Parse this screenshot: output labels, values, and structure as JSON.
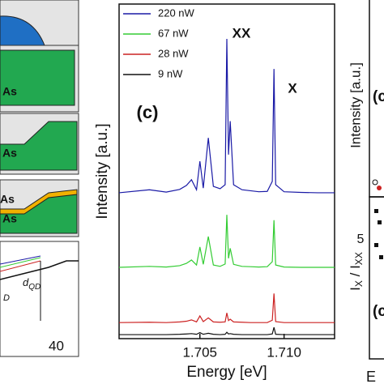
{
  "chart_data": {
    "type": "line",
    "xlabel": "Energy [eV]",
    "ylabel": "Intensity [a.u.]",
    "x": [
      1.7002,
      1.702,
      1.703,
      1.7038,
      1.7042,
      1.7045,
      1.7048,
      1.705,
      1.7052,
      1.7055,
      1.7058,
      1.7062,
      1.7065,
      1.7066,
      1.7067,
      1.7068,
      1.707,
      1.7075,
      1.708,
      1.7085,
      1.709,
      1.7093,
      1.7094,
      1.7095,
      1.71,
      1.711,
      1.712,
      1.713
    ],
    "series": [
      {
        "name": "220 nW",
        "color": "#1a1aa6",
        "values": [
          43.6,
          44.5,
          43.8,
          44.6,
          45.8,
          47.5,
          44.5,
          53,
          45,
          60,
          45.5,
          44.8,
          46,
          89.6,
          55,
          65,
          46,
          44.5,
          44.2,
          43.9,
          44,
          47,
          80.6,
          46,
          43.9,
          43.7,
          43.6,
          43.6
        ]
      },
      {
        "name": "67 nW",
        "color": "#33cc33",
        "values": [
          21.3,
          21.6,
          21.4,
          21.8,
          22.5,
          23.5,
          22,
          27.4,
          22.2,
          30.5,
          22,
          21.6,
          22.3,
          37,
          24,
          27,
          22.2,
          21.6,
          21.5,
          21.4,
          21.5,
          23,
          35.4,
          22,
          21.4,
          21.3,
          21.3,
          21.3
        ]
      },
      {
        "name": "28 nW",
        "color": "#cc2222",
        "values": [
          4.8,
          4.9,
          4.8,
          5,
          5.2,
          5.6,
          5,
          6.8,
          5.1,
          6.2,
          5,
          4.9,
          5,
          7.7,
          5.4,
          5.8,
          5,
          4.9,
          4.8,
          4.8,
          4.8,
          5.5,
          13.5,
          5.1,
          4.8,
          4.8,
          4.8,
          4.8
        ]
      },
      {
        "name": "9 nW",
        "color": "#111111",
        "values": [
          1.2,
          1.2,
          1.2,
          1.3,
          1.4,
          1.5,
          1.3,
          1.8,
          1.3,
          1.6,
          1.3,
          1.2,
          1.3,
          1.9,
          1.4,
          1.5,
          1.3,
          1.2,
          1.2,
          1.2,
          1.2,
          1.4,
          3.4,
          1.3,
          1.2,
          1.2,
          1.2,
          1.2
        ]
      }
    ],
    "xlim": [
      1.7002,
      1.713
    ],
    "ylim": [
      0,
      100
    ],
    "xticks": [
      1.705,
      1.71
    ],
    "xtick_labels": [
      "1.705",
      "1.710"
    ],
    "annotations": [
      "XX",
      "X",
      "(c)"
    ]
  },
  "left_panel": {
    "layer_labels": [
      "As",
      "As",
      "As",
      "As"
    ],
    "d_label": {
      "main": "d",
      "sub": "QD"
    },
    "d_fragment": "D",
    "tick": "40"
  },
  "right_panel": {
    "ylabel_top": "Intensity [a.u.]",
    "panel_top": "(c",
    "ratio_label": {
      "a": "I",
      "a_sub": "X",
      "sep": " / I",
      "b_sub": "XX"
    },
    "tick": "5",
    "panel_bottom": "(c",
    "xlabel_fragment": "E"
  }
}
